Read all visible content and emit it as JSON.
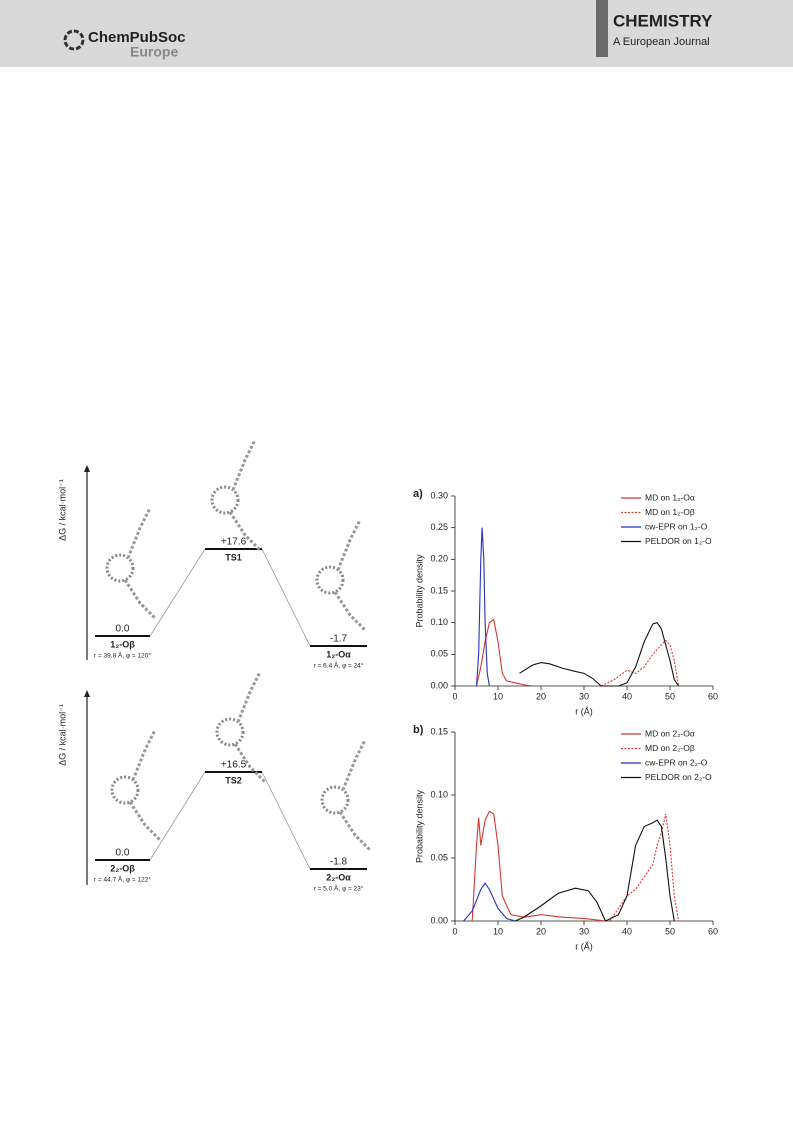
{
  "header": {
    "publisher": "ChemPubSoc",
    "publisher_region": "Europe",
    "journal": "CHEMISTRY",
    "journal_subtitle": "A European Journal"
  },
  "energy_diagrams": [
    {
      "axis_label": "ΔG / kcal·mol⁻¹",
      "levels": [
        {
          "energy_label": "0.0",
          "name": "1₂-Oβ",
          "geometry": "r = 39.8 Å, φ = 120°"
        },
        {
          "energy_label": "+17.6",
          "name": "TS1"
        },
        {
          "energy_label": "-1.7",
          "name": "1₂-Oα",
          "geometry": "r = 6.4 Å, φ = 24°"
        }
      ]
    },
    {
      "axis_label": "ΔG / kcal·mol⁻¹",
      "levels": [
        {
          "energy_label": "0.0",
          "name": "2₂-Oβ",
          "geometry": "r = 44.7 Å, φ = 122°"
        },
        {
          "energy_label": "+16.5",
          "name": "TS2"
        },
        {
          "energy_label": "-1.8",
          "name": "2₂-Oα",
          "geometry": "r = 5.0 Å, φ = 23°"
        }
      ]
    }
  ],
  "chart_data": [
    {
      "type": "line",
      "panel_label": "a)",
      "xlabel": "r (Å)",
      "ylabel": "Probability density",
      "xlim": [
        0,
        60
      ],
      "xticks": [
        0,
        10,
        20,
        30,
        40,
        50,
        60
      ],
      "ylim": [
        0,
        0.3
      ],
      "yticks": [
        {
          "value": 0,
          "label": "0.00"
        },
        {
          "value": 0.05,
          "label": "0.05"
        },
        {
          "value": 0.1,
          "label": "0.10"
        },
        {
          "value": 0.15,
          "label": "0.15"
        },
        {
          "value": 0.2,
          "label": "0.20"
        },
        {
          "value": 0.25,
          "label": "0.25"
        },
        {
          "value": 0.3,
          "label": "0.30"
        }
      ],
      "series": [
        {
          "name": "MD on 1₂-Oα",
          "color": "#d03a32",
          "dash": "solid",
          "x": [
            5,
            6,
            7,
            8,
            9,
            10,
            11,
            12,
            14,
            16,
            18
          ],
          "values": [
            0,
            0.03,
            0.07,
            0.1,
            0.105,
            0.07,
            0.02,
            0.008,
            0.005,
            0.002,
            0
          ]
        },
        {
          "name": "MD on 1₂-Oβ",
          "color": "#d03a32",
          "dash": "dotted",
          "x": [
            34,
            37,
            40,
            42,
            44,
            46,
            48,
            49,
            50,
            51,
            52
          ],
          "values": [
            0,
            0.01,
            0.025,
            0.02,
            0.03,
            0.05,
            0.065,
            0.072,
            0.065,
            0.04,
            0
          ]
        },
        {
          "name": "cw-EPR on 1₂-O",
          "color": "#2233bb",
          "dash": "solid",
          "x": [
            5,
            5.5,
            6,
            6.3,
            6.7,
            7,
            7.5,
            8
          ],
          "values": [
            0,
            0.05,
            0.2,
            0.25,
            0.2,
            0.1,
            0.02,
            0
          ]
        },
        {
          "name": "PELDOR on 1₂-O",
          "color": "#111111",
          "dash": "solid",
          "x": [
            15,
            18,
            20,
            22,
            25,
            28,
            30,
            32,
            34,
            38,
            40,
            42,
            44,
            46,
            47,
            48,
            50,
            51,
            52
          ],
          "values": [
            0.02,
            0.033,
            0.037,
            0.035,
            0.028,
            0.023,
            0.02,
            0.012,
            0,
            0,
            0.005,
            0.03,
            0.07,
            0.098,
            0.1,
            0.09,
            0.04,
            0.01,
            0
          ]
        }
      ]
    },
    {
      "type": "line",
      "panel_label": "b)",
      "xlabel": "r (Å)",
      "ylabel": "Probability density",
      "xlim": [
        0,
        60
      ],
      "xticks": [
        0,
        10,
        20,
        30,
        40,
        50,
        60
      ],
      "ylim": [
        0,
        0.15
      ],
      "yticks": [
        {
          "value": 0,
          "label": "0.00"
        },
        {
          "value": 0.05,
          "label": "0.05"
        },
        {
          "value": 0.1,
          "label": "0.10"
        },
        {
          "value": 0.15,
          "label": "0.15"
        }
      ],
      "series": [
        {
          "name": "MD on 2₂-Oα",
          "color": "#d03a32",
          "dash": "solid",
          "x": [
            4,
            5,
            5.5,
            6,
            7,
            8,
            9,
            10,
            11,
            13,
            16,
            20,
            25,
            30,
            35
          ],
          "values": [
            0,
            0.06,
            0.082,
            0.06,
            0.08,
            0.087,
            0.085,
            0.06,
            0.02,
            0.005,
            0.003,
            0.005,
            0.003,
            0.002,
            0
          ]
        },
        {
          "name": "MD on 2₂-Oβ",
          "color": "#d03a32",
          "dash": "dotted",
          "x": [
            36,
            38,
            40,
            42,
            44,
            46,
            47,
            48,
            49,
            50,
            51,
            52
          ],
          "values": [
            0,
            0.01,
            0.02,
            0.025,
            0.035,
            0.045,
            0.06,
            0.07,
            0.085,
            0.06,
            0.02,
            0
          ]
        },
        {
          "name": "cw-EPR on 2₂-O",
          "color": "#2233bb",
          "dash": "solid",
          "x": [
            2,
            4,
            6,
            7,
            8,
            10,
            12,
            14
          ],
          "values": [
            0,
            0.008,
            0.025,
            0.03,
            0.025,
            0.01,
            0.002,
            0
          ]
        },
        {
          "name": "PELDOR on 2₂-O",
          "color": "#111111",
          "dash": "solid",
          "x": [
            14,
            16,
            20,
            24,
            28,
            31,
            33,
            35,
            38,
            40,
            42,
            44,
            46,
            47,
            48,
            49,
            50,
            51
          ],
          "values": [
            0,
            0.003,
            0.012,
            0.022,
            0.026,
            0.024,
            0.015,
            0,
            0.005,
            0.02,
            0.06,
            0.075,
            0.078,
            0.08,
            0.075,
            0.05,
            0.02,
            0
          ]
        }
      ]
    }
  ]
}
